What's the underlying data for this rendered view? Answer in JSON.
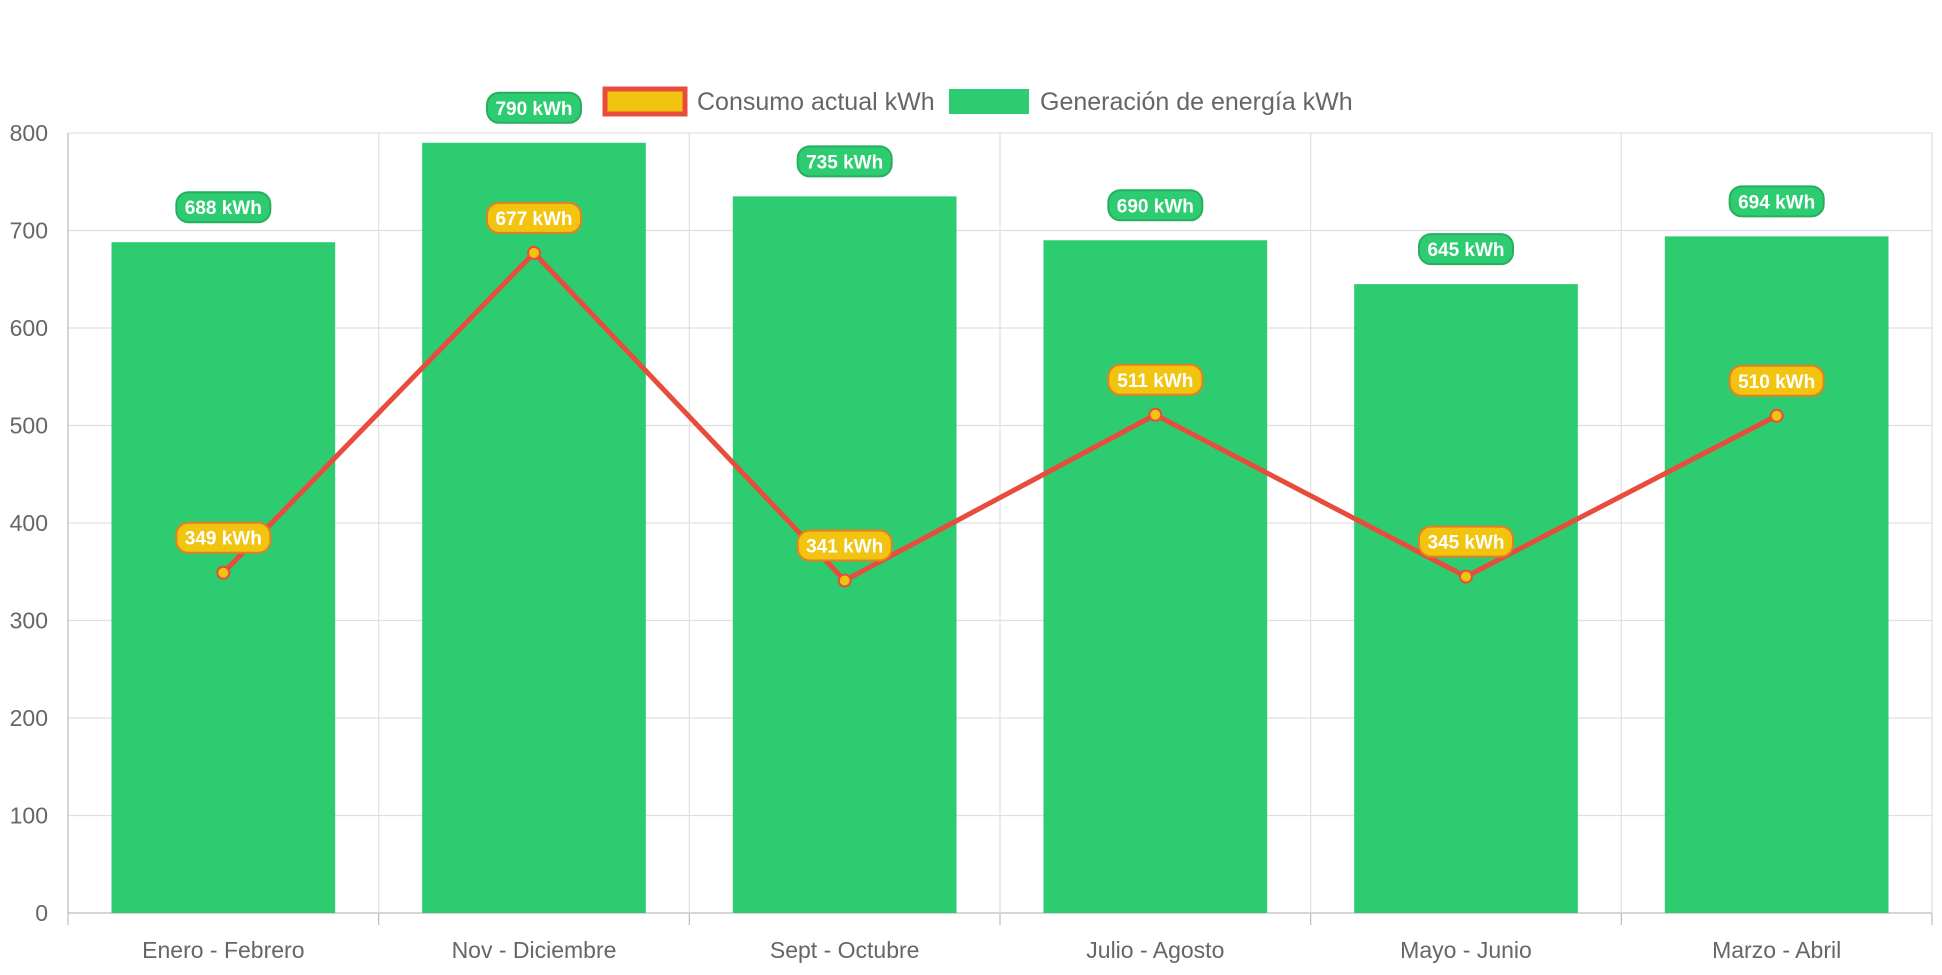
{
  "chart_data": {
    "type": "bar",
    "categories": [
      "Enero - Febrero",
      "Nov - Diciembre",
      "Sept - Octubre",
      "Julio - Agosto",
      "Mayo - Junio",
      "Marzo - Abril"
    ],
    "series": [
      {
        "name": "Generación de energía kWh",
        "type": "bar",
        "values": [
          688,
          790,
          735,
          690,
          645,
          694
        ],
        "labels": [
          "688 kWh",
          "790 kWh",
          "735 kWh",
          "690 kWh",
          "645 kWh",
          "694 kWh"
        ],
        "color": "#2ecc71"
      },
      {
        "name": "Consumo actual kWh",
        "type": "line",
        "values": [
          349,
          677,
          341,
          511,
          345,
          510
        ],
        "labels": [
          "349 kWh",
          "677 kWh",
          "341 kWh",
          "511 kWh",
          "345 kWh",
          "510 kWh"
        ],
        "color": "#e74c3c",
        "fill": "#f1c40f"
      }
    ],
    "ylim": [
      0,
      800
    ],
    "yticks": [
      "0",
      "100",
      "200",
      "300",
      "400",
      "500",
      "600",
      "700",
      "800"
    ],
    "grid": true,
    "legend_position": "top",
    "title": "",
    "xlabel": "",
    "ylabel": ""
  }
}
